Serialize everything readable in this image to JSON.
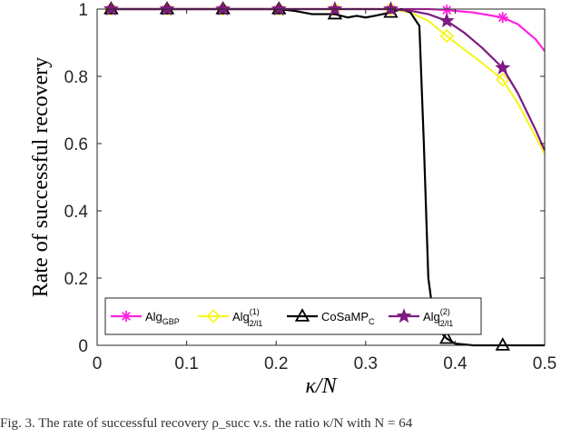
{
  "chart_data": {
    "type": "line",
    "xlabel": "κ/N",
    "ylabel": "Rate of successful recovery",
    "xlim": [
      0,
      0.5
    ],
    "ylim": [
      0,
      1
    ],
    "xticks": [
      0,
      0.1,
      0.2,
      0.3,
      0.4,
      0.5
    ],
    "yticks": [
      0,
      0.2,
      0.4,
      0.6,
      0.8,
      1
    ],
    "xtick_labels": [
      "0",
      "0.1",
      "0.2",
      "0.3",
      "0.4",
      "0.5"
    ],
    "ytick_labels": [
      "0",
      "0.2",
      "0.4",
      "0.6",
      "0.8",
      "1"
    ],
    "grid": false,
    "legend_position": "bottom",
    "series": [
      {
        "name": "AlgGBP",
        "label_main": "Alg",
        "label_sub": "GBP",
        "label_sup": "",
        "color": "#ff22e0",
        "marker": "asterisk",
        "x": [
          0.0156,
          0.0781,
          0.1406,
          0.2031,
          0.2656,
          0.3281,
          0.35,
          0.37,
          0.3906,
          0.42,
          0.4531,
          0.47,
          0.49,
          0.5
        ],
        "y": [
          1,
          1,
          1,
          1,
          1,
          1,
          1,
          1,
          0.997,
          0.99,
          0.975,
          0.955,
          0.91,
          0.875
        ],
        "marker_x": [
          0.0156,
          0.0781,
          0.1406,
          0.2031,
          0.2656,
          0.3281,
          0.3906,
          0.4531
        ]
      },
      {
        "name": "Alg(1) l2/l1",
        "label_main": "Alg",
        "label_sub": "l2/l1",
        "label_sup": "(1)",
        "color": "#f5f52a",
        "marker": "diamond",
        "x": [
          0.0156,
          0.0781,
          0.1406,
          0.2031,
          0.2656,
          0.3281,
          0.35,
          0.37,
          0.3906,
          0.41,
          0.43,
          0.4531,
          0.47,
          0.49,
          0.5
        ],
        "y": [
          1,
          1,
          1,
          1,
          1,
          1,
          0.99,
          0.965,
          0.92,
          0.88,
          0.84,
          0.79,
          0.72,
          0.62,
          0.57
        ],
        "marker_x": [
          0.0156,
          0.0781,
          0.1406,
          0.2031,
          0.2656,
          0.3281,
          0.3906,
          0.4531
        ]
      },
      {
        "name": "CoSaMPC",
        "label_main": "CoSaMP",
        "label_sub": "C",
        "label_sup": "",
        "color": "#000000",
        "marker": "triangle",
        "x": [
          0.0156,
          0.0781,
          0.1406,
          0.2031,
          0.22,
          0.24,
          0.2656,
          0.28,
          0.29,
          0.3,
          0.31,
          0.3281,
          0.34,
          0.35,
          0.355,
          0.36,
          0.365,
          0.37,
          0.375,
          0.38,
          0.3906,
          0.4,
          0.42,
          0.4531,
          0.5
        ],
        "y": [
          1,
          1,
          1,
          1,
          0.995,
          0.985,
          0.985,
          0.975,
          0.98,
          0.975,
          0.98,
          0.99,
          1,
          0.99,
          0.97,
          0.95,
          0.6,
          0.2,
          0.1,
          0.05,
          0.02,
          0.005,
          0,
          0,
          0
        ],
        "marker_x": [
          0.0156,
          0.0781,
          0.1406,
          0.2031,
          0.2656,
          0.3281,
          0.3906,
          0.4531
        ]
      },
      {
        "name": "Alg(2) l2/l1",
        "label_main": "Alg",
        "label_sub": "l2/l1",
        "label_sup": "(2)",
        "color": "#7e1a82",
        "marker": "star",
        "x": [
          0.0156,
          0.0781,
          0.1406,
          0.2031,
          0.2656,
          0.3281,
          0.35,
          0.37,
          0.3906,
          0.41,
          0.43,
          0.4531,
          0.47,
          0.49,
          0.5
        ],
        "y": [
          1,
          1,
          1,
          1,
          1,
          1,
          0.995,
          0.985,
          0.965,
          0.93,
          0.885,
          0.825,
          0.75,
          0.64,
          0.58
        ],
        "marker_x": [
          0.0156,
          0.0781,
          0.1406,
          0.2031,
          0.2656,
          0.3281,
          0.3906,
          0.4531
        ]
      }
    ]
  },
  "caption": "Fig. 3.   The rate of successful recovery  ρ_succ  v.s. the ratio κ/N with N = 64"
}
